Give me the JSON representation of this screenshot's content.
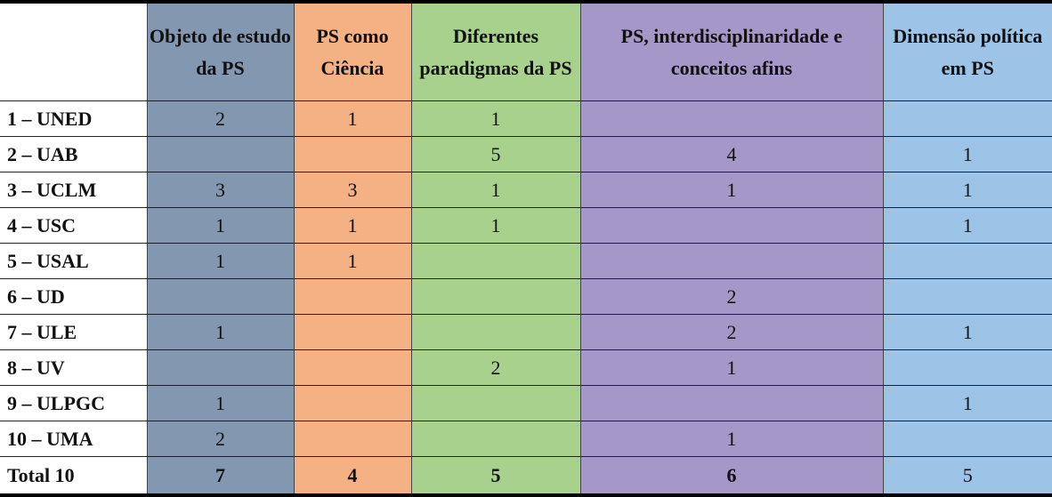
{
  "colors": {
    "col1": "#8497b0",
    "col2": "#f4b183",
    "col3": "#a9d18e",
    "col4": "#a597c8",
    "col5": "#9dc3e6"
  },
  "headers": [
    "",
    "Objeto de estudo da PS",
    "PS como Ciência",
    "Diferentes paradigmas da PS",
    "PS, interdisciplinaridade e conceitos afins",
    "Dimensão política em PS"
  ],
  "rows": [
    {
      "label": "1 – UNED",
      "values": [
        "2",
        "1",
        "1",
        "",
        ""
      ]
    },
    {
      "label": "2 – UAB",
      "values": [
        "",
        "",
        "5",
        "4",
        "1"
      ]
    },
    {
      "label": "3 – UCLM",
      "values": [
        "3",
        "3",
        "1",
        "1",
        "1"
      ]
    },
    {
      "label": "4 – USC",
      "values": [
        "1",
        "1",
        "1",
        "",
        "1"
      ]
    },
    {
      "label": "5 – USAL",
      "values": [
        "1",
        "1",
        "",
        "",
        ""
      ]
    },
    {
      "label": "6 – UD",
      "values": [
        "",
        "",
        "",
        "2",
        ""
      ]
    },
    {
      "label": "7 – ULE",
      "values": [
        "1",
        "",
        "",
        "2",
        "1"
      ]
    },
    {
      "label": "8 – UV",
      "values": [
        "",
        "",
        "2",
        "1",
        ""
      ]
    },
    {
      "label": "9 – ULPGC",
      "values": [
        "1",
        "",
        "",
        "",
        "1"
      ]
    },
    {
      "label": "10 – UMA",
      "values": [
        "2",
        "",
        "",
        "1",
        ""
      ]
    }
  ],
  "total": {
    "label": "Total 10",
    "values": [
      "7",
      "4",
      "5",
      "6",
      "5"
    ]
  }
}
